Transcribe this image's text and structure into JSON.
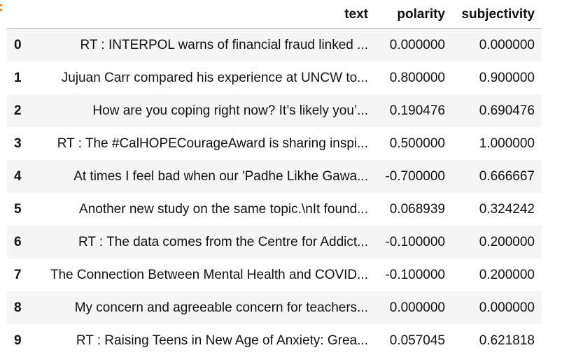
{
  "table": {
    "columns": [
      "text",
      "polarity",
      "subjectivity"
    ],
    "rows": [
      {
        "index": "0",
        "text": "RT : INTERPOL warns of financial fraud linked ...",
        "polarity": "0.000000",
        "subjectivity": "0.000000"
      },
      {
        "index": "1",
        "text": "Jujuan Carr compared his experience at UNCW to...",
        "polarity": "0.800000",
        "subjectivity": "0.900000"
      },
      {
        "index": "2",
        "text": "How are you coping right now? It’s likely you’...",
        "polarity": "0.190476",
        "subjectivity": "0.690476"
      },
      {
        "index": "3",
        "text": "RT : The #CalHOPECourageAward is sharing inspi...",
        "polarity": "0.500000",
        "subjectivity": "1.000000"
      },
      {
        "index": "4",
        "text": "At times I feel bad when our 'Padhe Likhe Gawa...",
        "polarity": "-0.700000",
        "subjectivity": "0.666667"
      },
      {
        "index": "5",
        "text": "Another new study on the same topic.\\nIt found...",
        "polarity": "0.068939",
        "subjectivity": "0.324242"
      },
      {
        "index": "6",
        "text": "RT : The data comes from the Centre for Addict...",
        "polarity": "-0.100000",
        "subjectivity": "0.200000"
      },
      {
        "index": "7",
        "text": "The Connection Between Mental Health and COVID...",
        "polarity": "-0.100000",
        "subjectivity": "0.200000"
      },
      {
        "index": "8",
        "text": "My concern and agreeable concern for teachers...",
        "polarity": "0.000000",
        "subjectivity": "0.000000"
      },
      {
        "index": "9",
        "text": "RT : Raising Teens in New Age of Anxiety: Grea...",
        "polarity": "0.057045",
        "subjectivity": "0.621818"
      }
    ]
  }
}
